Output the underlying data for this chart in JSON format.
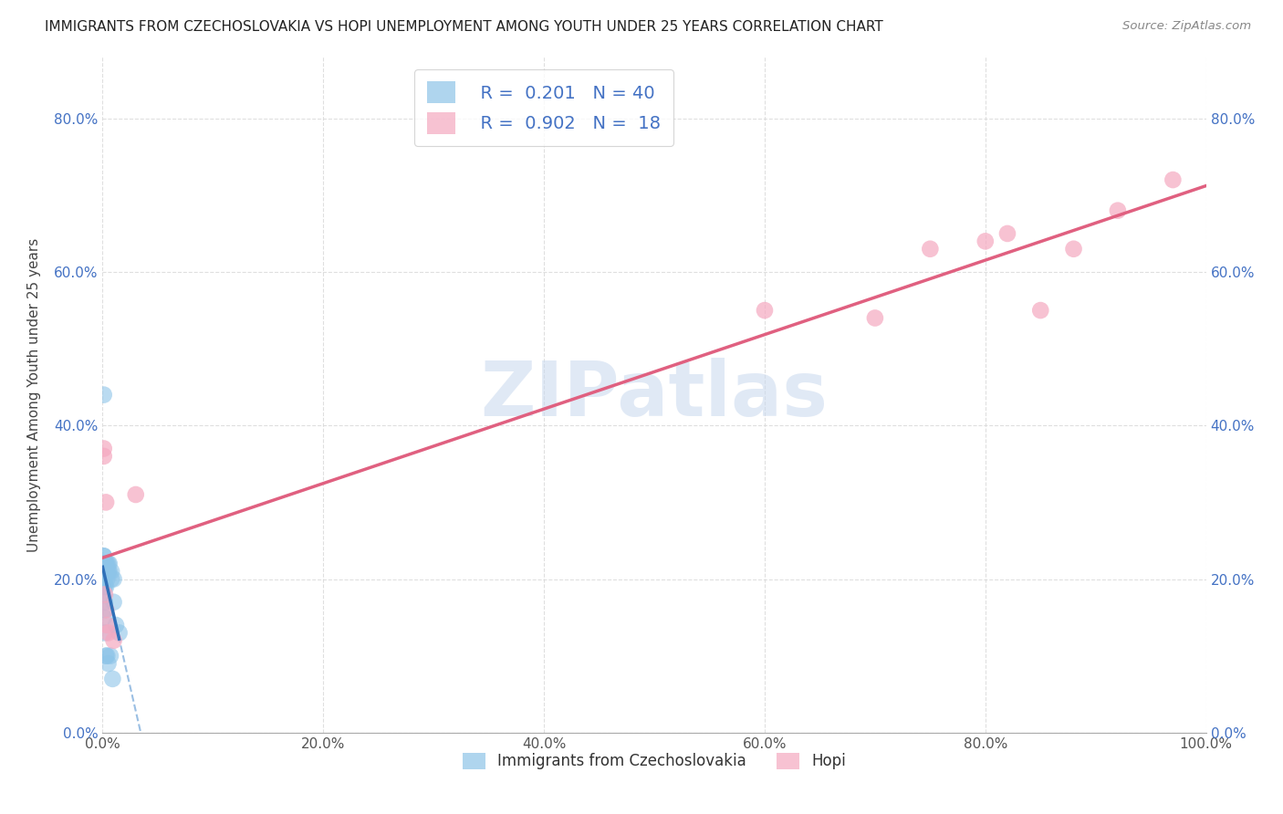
{
  "title": "IMMIGRANTS FROM CZECHOSLOVAKIA VS HOPI UNEMPLOYMENT AMONG YOUTH UNDER 25 YEARS CORRELATION CHART",
  "source": "Source: ZipAtlas.com",
  "ylabel": "Unemployment Among Youth under 25 years",
  "legend_label1": "Immigrants from Czechoslovakia",
  "legend_label2": "Hopi",
  "R1": 0.201,
  "N1": 40,
  "R2": 0.902,
  "N2": 18,
  "blue_color": "#8dc4e8",
  "pink_color": "#f5a8c0",
  "blue_line_color": "#3070b8",
  "pink_line_color": "#e06080",
  "dashed_line_color": "#90b8e0",
  "background_color": "#ffffff",
  "grid_color": "#d8d8d8",
  "xlim": [
    0,
    1.0
  ],
  "ylim": [
    0,
    0.88
  ],
  "blue_scatter_x": [
    0.001,
    0.001,
    0.001,
    0.001,
    0.001,
    0.001,
    0.001,
    0.001,
    0.002,
    0.002,
    0.002,
    0.002,
    0.002,
    0.002,
    0.002,
    0.003,
    0.003,
    0.003,
    0.003,
    0.004,
    0.004,
    0.004,
    0.005,
    0.005,
    0.006,
    0.006,
    0.008,
    0.008,
    0.01,
    0.01,
    0.012,
    0.015,
    0.001,
    0.001,
    0.002,
    0.003,
    0.004,
    0.005,
    0.007,
    0.009
  ],
  "blue_scatter_y": [
    0.22,
    0.22,
    0.23,
    0.23,
    0.21,
    0.2,
    0.19,
    0.18,
    0.22,
    0.22,
    0.21,
    0.2,
    0.19,
    0.17,
    0.16,
    0.22,
    0.22,
    0.21,
    0.19,
    0.22,
    0.21,
    0.2,
    0.22,
    0.21,
    0.22,
    0.21,
    0.21,
    0.2,
    0.2,
    0.17,
    0.14,
    0.13,
    0.44,
    0.15,
    0.13,
    0.1,
    0.1,
    0.09,
    0.1,
    0.07
  ],
  "pink_scatter_x": [
    0.001,
    0.001,
    0.002,
    0.003,
    0.003,
    0.004,
    0.005,
    0.01,
    0.03,
    0.6,
    0.7,
    0.75,
    0.8,
    0.82,
    0.85,
    0.88,
    0.92,
    0.97
  ],
  "pink_scatter_y": [
    0.37,
    0.36,
    0.18,
    0.3,
    0.16,
    0.14,
    0.13,
    0.12,
    0.31,
    0.55,
    0.54,
    0.63,
    0.64,
    0.65,
    0.55,
    0.63,
    0.68,
    0.72
  ],
  "watermark": "ZIPatlas",
  "watermark_color": "#c8d8ee"
}
